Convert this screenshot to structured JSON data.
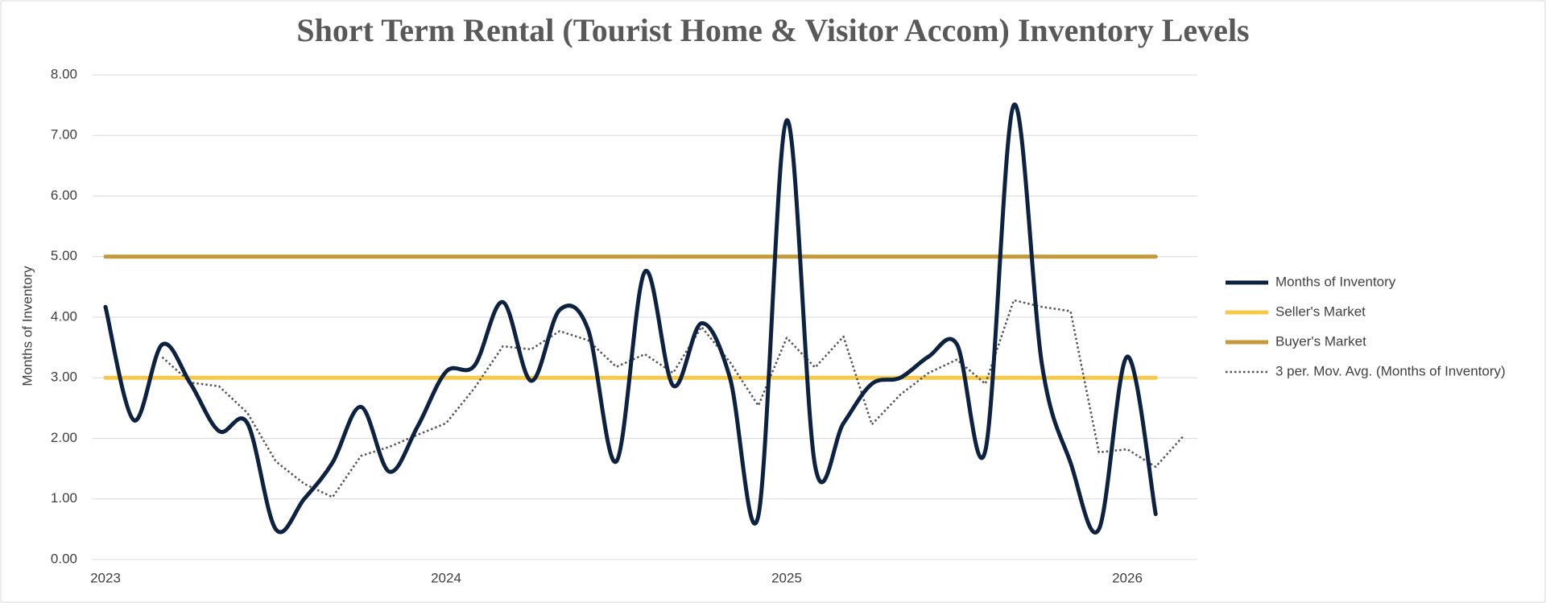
{
  "chart_data": {
    "type": "line",
    "title": "Short Term Rental (Tourist Home & Visitor Accom) Inventory Levels",
    "y_label": "Months of Inventory",
    "categories": [
      "2023",
      null,
      null,
      null,
      null,
      null,
      null,
      null,
      null,
      null,
      null,
      null,
      "2024",
      null,
      null,
      null,
      null,
      null,
      null,
      null,
      null,
      null,
      null,
      null,
      "2025",
      null,
      null,
      null,
      null,
      null,
      null,
      null,
      null,
      null,
      null,
      null,
      "2026",
      null,
      null
    ],
    "series": [
      {
        "name": "Months of Inventory",
        "color": "#0d2240",
        "style": "smooth",
        "values": [
          4.17,
          2.3,
          3.55,
          2.9,
          2.12,
          2.25,
          0.5,
          1.0,
          1.6,
          2.52,
          1.45,
          2.2,
          3.1,
          3.2,
          4.25,
          2.95,
          4.12,
          3.8,
          1.62,
          4.75,
          2.87,
          3.9,
          3.0,
          0.72,
          7.25,
          1.55,
          2.25,
          2.9,
          3.0,
          3.35,
          3.55,
          1.8,
          7.5,
          3.2,
          1.6,
          0.5,
          3.35,
          0.75,
          null
        ]
      },
      {
        "name": "Seller's Market",
        "color": "#f7c948",
        "style": "solid",
        "values": [
          3,
          3,
          3,
          3,
          3,
          3,
          3,
          3,
          3,
          3,
          3,
          3,
          3,
          3,
          3,
          3,
          3,
          3,
          3,
          3,
          3,
          3,
          3,
          3,
          3,
          3,
          3,
          3,
          3,
          3,
          3,
          3,
          3,
          3,
          3,
          3,
          3,
          3,
          null
        ]
      },
      {
        "name": "Buyer's Market",
        "color": "#c4993a",
        "style": "solid",
        "values": [
          5,
          5,
          5,
          5,
          5,
          5,
          5,
          5,
          5,
          5,
          5,
          5,
          5,
          5,
          5,
          5,
          5,
          5,
          5,
          5,
          5,
          5,
          5,
          5,
          5,
          5,
          5,
          5,
          5,
          5,
          5,
          5,
          5,
          5,
          5,
          5,
          5,
          5,
          null
        ]
      },
      {
        "name": "3 per. Mov. Avg. (Months of Inventory)",
        "color": "#555555",
        "style": "dotted",
        "values": [
          null,
          null,
          3.34,
          2.92,
          2.86,
          2.42,
          1.62,
          1.25,
          1.03,
          1.71,
          1.86,
          2.06,
          2.25,
          2.83,
          3.52,
          3.47,
          3.77,
          3.62,
          3.18,
          3.39,
          3.08,
          3.84,
          3.26,
          2.54,
          3.66,
          3.17,
          3.68,
          2.23,
          2.72,
          3.08,
          3.3,
          2.9,
          4.28,
          4.17,
          4.1,
          1.77,
          1.82,
          1.53,
          2.05
        ]
      }
    ],
    "ylim": [
      0,
      8
    ],
    "yticks": [
      {
        "value": 0,
        "label": "0.00"
      },
      {
        "value": 1,
        "label": "1.00"
      },
      {
        "value": 2,
        "label": "2.00"
      },
      {
        "value": 3,
        "label": "3.00"
      },
      {
        "value": 4,
        "label": "4.00"
      },
      {
        "value": 5,
        "label": "5.00"
      },
      {
        "value": 6,
        "label": "6.00"
      },
      {
        "value": 7,
        "label": "7.00"
      },
      {
        "value": 8,
        "label": "8.00"
      }
    ],
    "grid": true,
    "legend": "right"
  }
}
